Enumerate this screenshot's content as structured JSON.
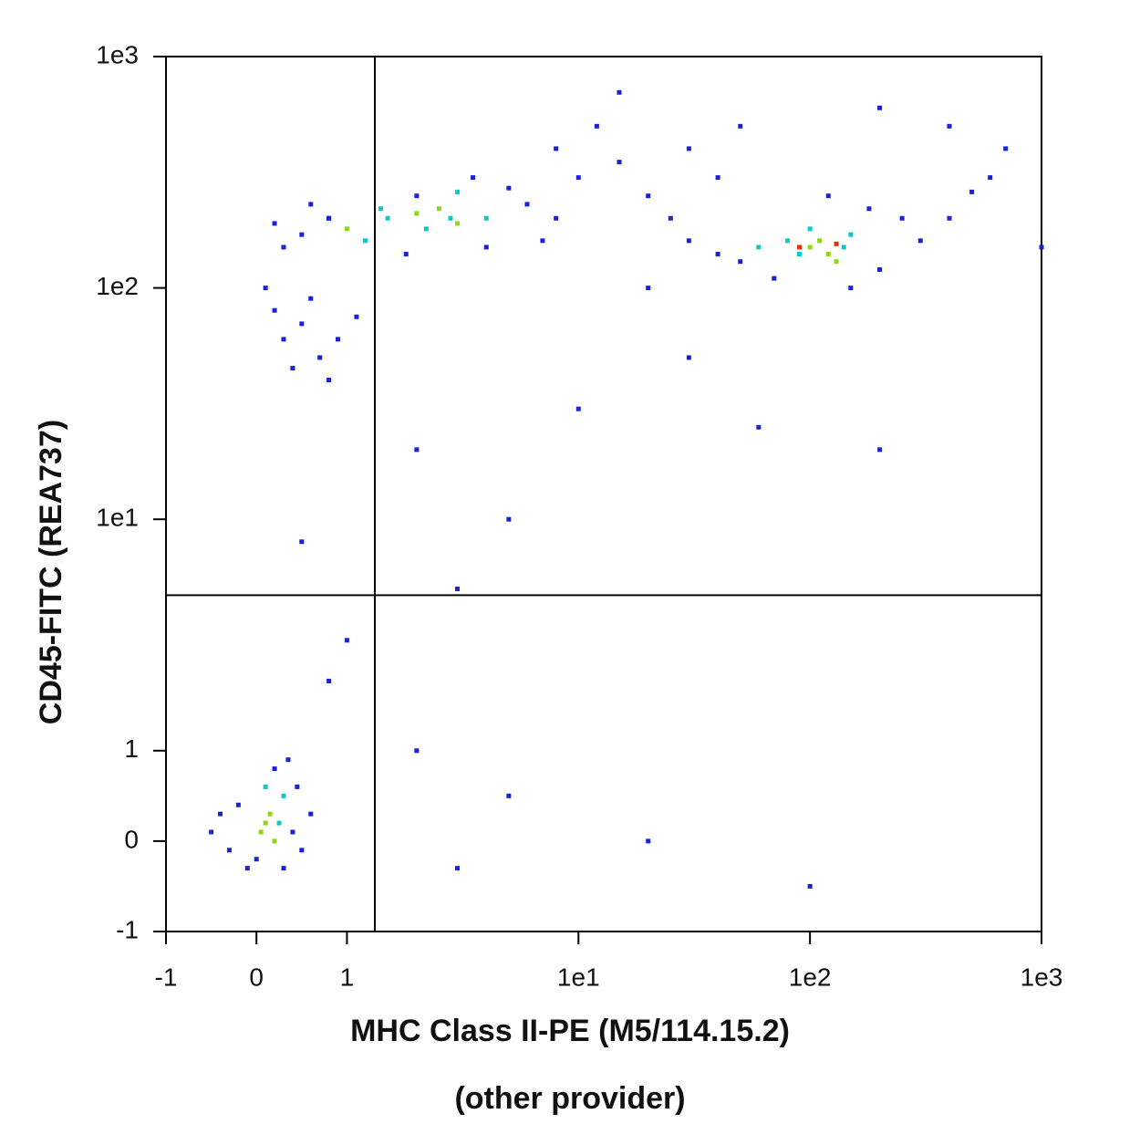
{
  "chart_data": {
    "type": "scatter",
    "xlabel": "MHC Class II-PE (M5/114.15.2)",
    "xlabel_note": "(other provider)",
    "ylabel": "CD45-FITC (REA737)",
    "scale": "biexponential",
    "xlim": [
      -1,
      1000
    ],
    "ylim": [
      -1,
      1000
    ],
    "xticks": [
      -1,
      0,
      1,
      {
        "value": 10,
        "label": "1e1"
      },
      {
        "value": 100,
        "label": "1e2"
      },
      {
        "value": 1000,
        "label": "1e3"
      }
    ],
    "yticks": [
      -1,
      0,
      1,
      {
        "value": 10,
        "label": "1e1"
      },
      {
        "value": 100,
        "label": "1e2"
      },
      {
        "value": 1000,
        "label": "1e3"
      }
    ],
    "gates": {
      "x": 1.32,
      "y": 4.7
    },
    "series": [
      {
        "color": "#1a22d6",
        "x": [
          -0.2,
          0,
          0.4,
          -0.4,
          0.5,
          0.2,
          -0.1,
          0.6,
          0.3,
          -0.3,
          0.35,
          -0.5,
          0.45,
          0.5,
          0.3,
          0.8,
          0.6,
          2,
          3.5,
          5,
          0.2,
          6,
          8,
          7,
          1.8,
          0.8,
          4,
          50,
          40,
          180,
          250,
          300,
          70,
          150,
          120,
          200,
          400,
          500,
          600,
          30,
          0.3,
          0.5,
          0.7,
          0.2,
          0.9,
          0.4,
          1.1,
          0.6,
          0.1,
          0.8,
          10,
          15,
          20,
          25,
          30,
          40,
          12,
          50,
          200,
          400,
          700,
          20,
          8,
          15,
          1000,
          2,
          5,
          3,
          1,
          10,
          30,
          60,
          200,
          2,
          5,
          20,
          100,
          3,
          0.5,
          0.8
        ],
        "values": [
          0.4,
          -0.2,
          0.1,
          0.3,
          -0.1,
          0.8,
          -0.3,
          0.3,
          -0.3,
          -0.1,
          0.9,
          0.1,
          0.6,
          170,
          150,
          200,
          230,
          250,
          300,
          270,
          190,
          230,
          200,
          160,
          140,
          200,
          150,
          130,
          140,
          220,
          200,
          160,
          110,
          100,
          250,
          120,
          200,
          260,
          300,
          160,
          60,
          70,
          50,
          80,
          60,
          45,
          75,
          90,
          100,
          40,
          300,
          350,
          250,
          200,
          400,
          300,
          500,
          500,
          600,
          500,
          400,
          100,
          400,
          700,
          150,
          20,
          10,
          5,
          3,
          30,
          50,
          25,
          20,
          1,
          0.5,
          0,
          -0.5,
          -0.3,
          8,
          2
        ]
      },
      {
        "color": "#10c8c8",
        "x": [
          0.3,
          0.1,
          0.25,
          1.5,
          4,
          1.2,
          2.2,
          2.8,
          1.4,
          3,
          80,
          150,
          90,
          60,
          100,
          140
        ],
        "values": [
          0.5,
          0.6,
          0.2,
          200,
          200,
          160,
          180,
          200,
          220,
          260,
          160,
          170,
          140,
          150,
          180,
          150
        ]
      },
      {
        "color": "#8ad818",
        "x": [
          0.1,
          0.2,
          0.15,
          0.05,
          2,
          2.5,
          3,
          1,
          100,
          120,
          110,
          130
        ],
        "values": [
          0.2,
          0,
          0.3,
          0.1,
          210,
          220,
          190,
          180,
          150,
          140,
          160,
          130
        ]
      },
      {
        "color": "#e83010",
        "x": [
          90,
          130
        ],
        "values": [
          150,
          155
        ]
      }
    ]
  }
}
